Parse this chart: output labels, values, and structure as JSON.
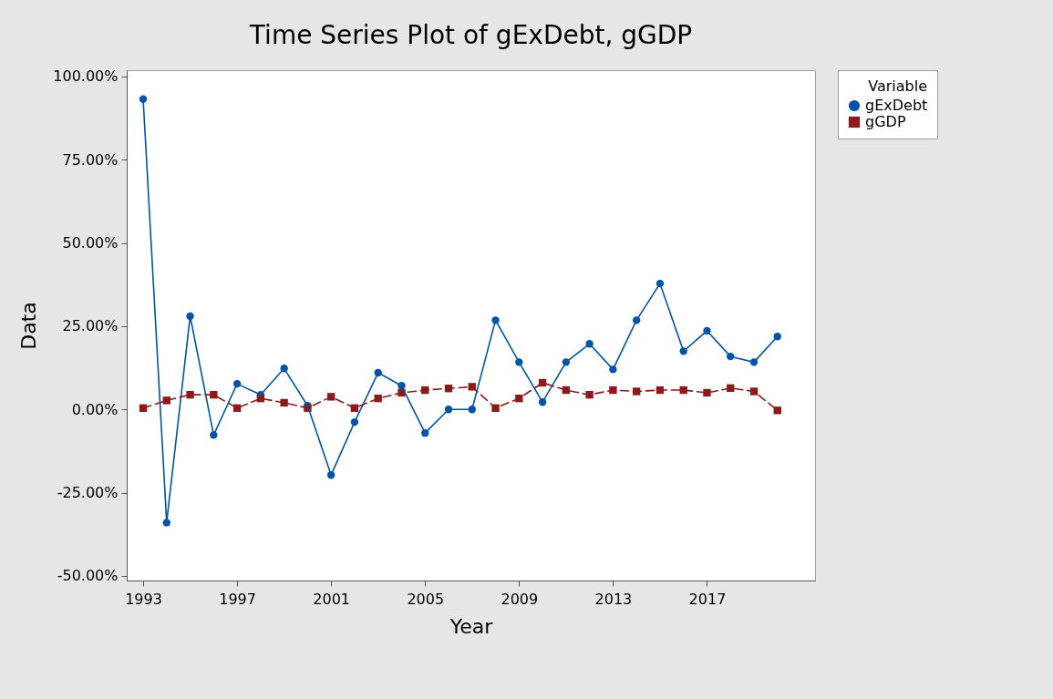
{
  "chart_data": {
    "type": "line",
    "title": "Time Series Plot of gExDebt, gGDP",
    "xlabel": "Year",
    "ylabel": "Data",
    "legend_title": "Variable",
    "legend": "right",
    "grid": false,
    "x": [
      1993,
      1994,
      1995,
      1996,
      1997,
      1998,
      1999,
      2000,
      2001,
      2002,
      2003,
      2004,
      2005,
      2006,
      2007,
      2008,
      2009,
      2010,
      2011,
      2012,
      2013,
      2014,
      2015,
      2016,
      2017,
      2018,
      2019,
      2020
    ],
    "xlim": [
      1992.3,
      2021.6
    ],
    "xticks": [
      1993,
      1997,
      2001,
      2005,
      2009,
      2013,
      2017
    ],
    "ylim": [
      -51.4,
      101.9
    ],
    "yticks": [
      {
        "value": -50,
        "label": "-50.00%"
      },
      {
        "value": -25,
        "label": "-25.00%"
      },
      {
        "value": 0,
        "label": "0.00%"
      },
      {
        "value": 25,
        "label": "25.00%"
      },
      {
        "value": 50,
        "label": "50.00%"
      },
      {
        "value": 75,
        "label": "75.00%"
      },
      {
        "value": 100,
        "label": "100.00%"
      }
    ],
    "series": [
      {
        "name": "gExDebt",
        "color": "#0054a6",
        "marker": "circle",
        "line_style": "solid",
        "values": [
          93.2,
          -34,
          28,
          -7.7,
          7.7,
          4.4,
          12.3,
          1.1,
          -19.7,
          -3.8,
          11,
          7.1,
          -7.1,
          0,
          0,
          26.8,
          14.2,
          2.2,
          14.2,
          19.7,
          12,
          26.8,
          37.8,
          17.5,
          23.6,
          15.9,
          14.2,
          21.9
        ]
      },
      {
        "name": "gGDP",
        "color": "#8b1a1a",
        "marker": "square",
        "line_style": "dashed",
        "values": [
          0.4,
          2.7,
          4.4,
          4.4,
          0.4,
          3.3,
          2,
          0.4,
          3.8,
          0.4,
          3.3,
          5,
          5.8,
          6.3,
          6.8,
          0.4,
          3.3,
          8,
          5.8,
          4.4,
          5.8,
          5.4,
          5.8,
          5.8,
          5,
          6.4,
          5.4,
          -0.3
        ]
      }
    ]
  }
}
